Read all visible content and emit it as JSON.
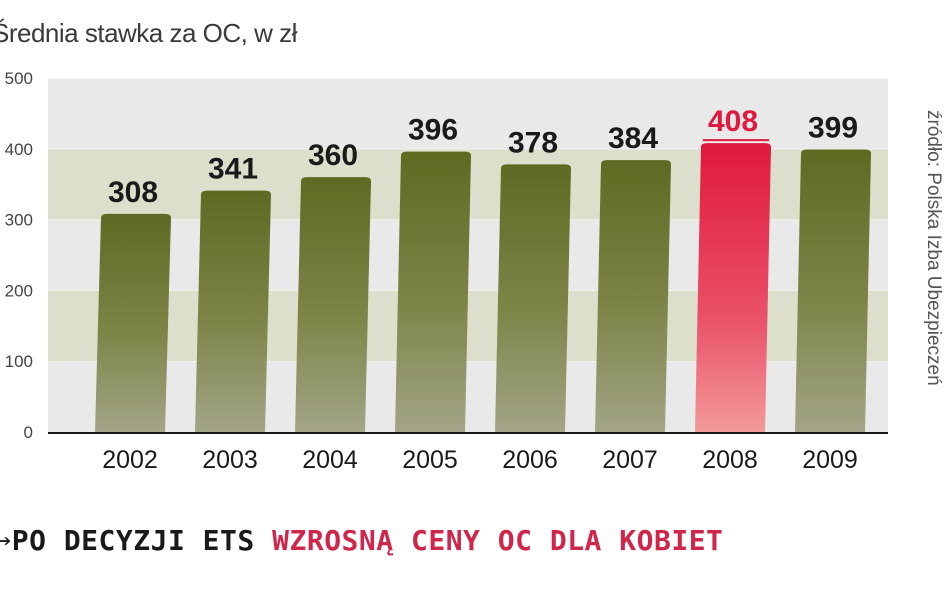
{
  "title": "Średnia stawka za OC, w zł",
  "source": "źródło: Polska Izba Ubezpieczeń",
  "headline": {
    "arrow": "➔",
    "dark_part": "PO DECYZJI ETS ",
    "red_part": "WZROSNĄ CENY OC DLA KOBIET"
  },
  "colors": {
    "bar_olive": "#5e6a22",
    "bar_highlight": "#e0193f",
    "label_default": "#1a1a1a",
    "label_highlight": "#e0193f",
    "band_light": "#e9e9e9",
    "band_dark": "#dcdfcb",
    "headline_red": "#d0264c"
  },
  "chart_data": {
    "type": "bar",
    "title": "Średnia stawka za OC, w zł",
    "categories": [
      "2002",
      "2003",
      "2004",
      "2005",
      "2006",
      "2007",
      "2008",
      "2009"
    ],
    "values": [
      308,
      341,
      360,
      396,
      378,
      384,
      408,
      399
    ],
    "highlight_category": "2008",
    "ylim": [
      0,
      500
    ],
    "yticks": [
      "0",
      "100",
      "200",
      "300",
      "400",
      "500"
    ],
    "grid": true,
    "xlabel": "",
    "ylabel": ""
  }
}
